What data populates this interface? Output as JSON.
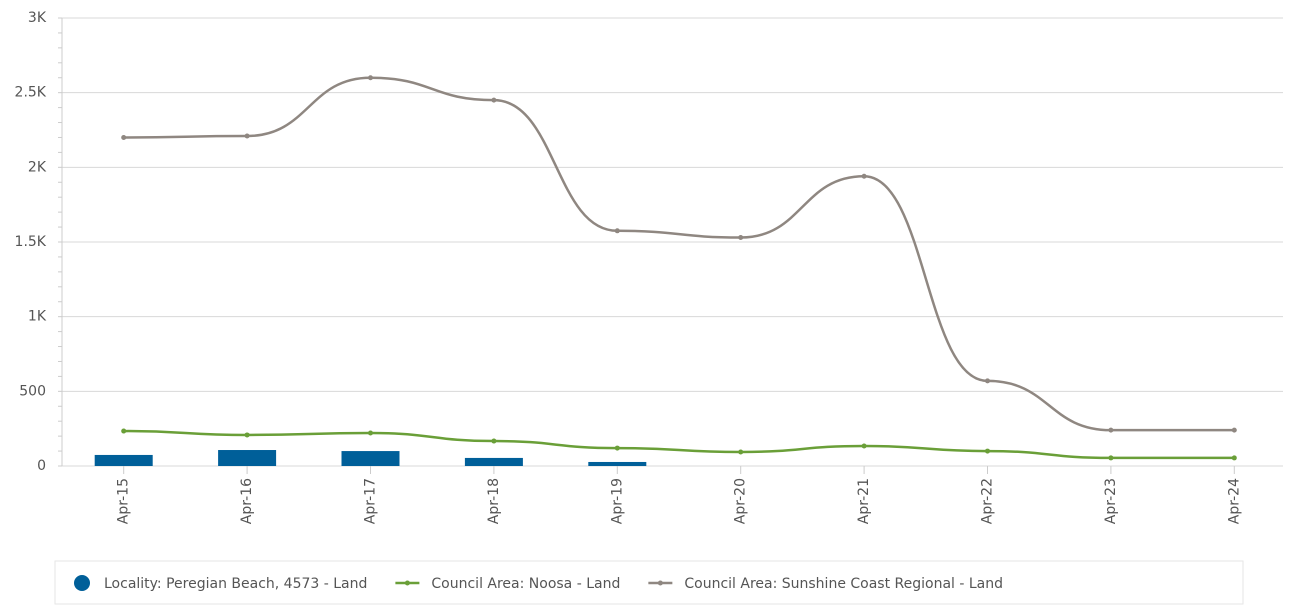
{
  "chart_data": {
    "type": "combo",
    "categories": [
      "Apr-15",
      "Apr-16",
      "Apr-17",
      "Apr-18",
      "Apr-19",
      "Apr-20",
      "Apr-21",
      "Apr-22",
      "Apr-23",
      "Apr-24"
    ],
    "series": [
      {
        "name": "Locality: Peregian Beach, 4573 - Land",
        "type": "bar",
        "color": "#005f99",
        "values": [
          74,
          107,
          100,
          54,
          27,
          null,
          null,
          null,
          null,
          null
        ]
      },
      {
        "name": "Council Area: Noosa - Land",
        "type": "line",
        "color": "#6a9f38",
        "values": [
          234,
          208,
          221,
          167,
          120,
          94,
          134,
          100,
          54,
          54
        ]
      },
      {
        "name": "Council Area: Sunshine Coast Regional - Land",
        "type": "line",
        "color": "#8f8781",
        "values": [
          2200,
          2210,
          2600,
          2450,
          1575,
          1530,
          1940,
          570,
          240,
          240
        ]
      }
    ],
    "ylim": [
      0,
      3000
    ],
    "yticks": [
      0,
      500,
      {
        "value": 1000,
        "label": "1K"
      },
      {
        "value": 1500,
        "label": "1.5K"
      },
      {
        "value": 2000,
        "label": "2K"
      },
      {
        "value": 2500,
        "label": "2.5K"
      },
      {
        "value": 3000,
        "label": "3K"
      }
    ],
    "grid": true,
    "legend": "bottom"
  }
}
